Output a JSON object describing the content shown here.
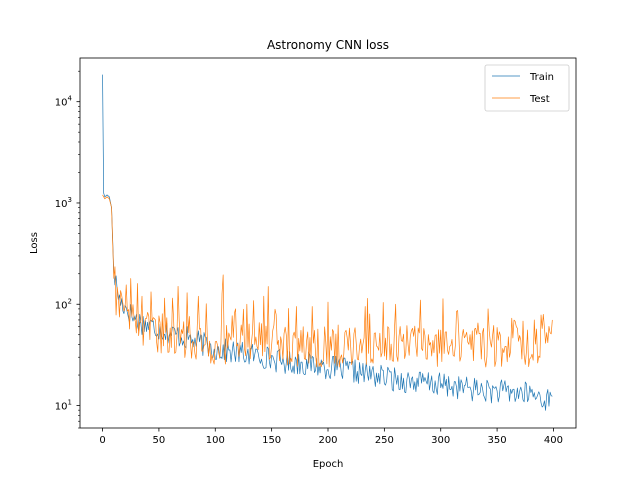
{
  "chart_data": {
    "type": "line",
    "title": "Astronomy CNN loss",
    "xlabel": "Epoch",
    "ylabel": "Loss",
    "xlim": [
      -20,
      420
    ],
    "ylim": [
      6,
      27000
    ],
    "yscale": "log",
    "grid": false,
    "legend_position": "top-right",
    "x_ticks": [
      0,
      50,
      100,
      150,
      200,
      250,
      300,
      350,
      400
    ],
    "x_tick_labels": [
      "0",
      "50",
      "100",
      "150",
      "200",
      "250",
      "300",
      "350",
      "400"
    ],
    "y_ticks": [
      10,
      100,
      1000,
      10000
    ],
    "y_tick_labels": [
      {
        "base": "10",
        "exp": "1"
      },
      {
        "base": "10",
        "exp": "2"
      },
      {
        "base": "10",
        "exp": "3"
      },
      {
        "base": "10",
        "exp": "4"
      }
    ],
    "series": [
      {
        "name": "Train",
        "color": "#1f77b4",
        "keypoints": [
          [
            0,
            18500
          ],
          [
            1,
            1250
          ],
          [
            2,
            1150
          ],
          [
            4,
            1200
          ],
          [
            6,
            1150
          ],
          [
            8,
            900
          ],
          [
            10,
            200
          ],
          [
            12,
            160
          ],
          [
            15,
            110
          ],
          [
            20,
            95
          ],
          [
            25,
            80
          ],
          [
            30,
            70
          ],
          [
            40,
            62
          ],
          [
            50,
            58
          ],
          [
            60,
            52
          ],
          [
            70,
            48
          ],
          [
            80,
            44
          ],
          [
            90,
            40
          ],
          [
            100,
            36
          ],
          [
            120,
            33
          ],
          [
            140,
            31
          ],
          [
            160,
            27
          ],
          [
            180,
            26
          ],
          [
            200,
            24
          ],
          [
            220,
            22
          ],
          [
            240,
            20
          ],
          [
            260,
            18
          ],
          [
            280,
            17
          ],
          [
            300,
            16
          ],
          [
            320,
            15
          ],
          [
            340,
            14
          ],
          [
            360,
            13.5
          ],
          [
            380,
            13
          ],
          [
            399,
            11
          ]
        ],
        "noise": 0.12
      },
      {
        "name": "Test",
        "color": "#ff7f0e",
        "keypoints": [
          [
            0,
            1200
          ],
          [
            2,
            1100
          ],
          [
            4,
            1150
          ],
          [
            6,
            1100
          ],
          [
            8,
            900
          ],
          [
            10,
            180
          ],
          [
            12,
            120
          ],
          [
            15,
            85
          ],
          [
            20,
            75
          ],
          [
            25,
            65
          ],
          [
            30,
            60
          ],
          [
            40,
            55
          ],
          [
            50,
            52
          ],
          [
            60,
            50
          ],
          [
            70,
            48
          ],
          [
            80,
            45
          ],
          [
            90,
            42
          ],
          [
            100,
            40
          ],
          [
            120,
            40
          ],
          [
            140,
            42
          ],
          [
            160,
            40
          ],
          [
            180,
            38
          ],
          [
            200,
            38
          ],
          [
            220,
            38
          ],
          [
            240,
            38
          ],
          [
            260,
            40
          ],
          [
            280,
            40
          ],
          [
            300,
            38
          ],
          [
            320,
            38
          ],
          [
            340,
            38
          ],
          [
            360,
            38
          ],
          [
            380,
            38
          ],
          [
            399,
            45
          ]
        ],
        "noise": 0.2,
        "spikes": [
          [
            35,
            120
          ],
          [
            55,
            115
          ],
          [
            62,
            115
          ],
          [
            75,
            130
          ],
          [
            85,
            120
          ],
          [
            107,
            195
          ],
          [
            118,
            90
          ],
          [
            128,
            100
          ],
          [
            143,
            120
          ],
          [
            147,
            150
          ],
          [
            172,
            95
          ],
          [
            200,
            105
          ],
          [
            233,
            95
          ],
          [
            260,
            100
          ],
          [
            282,
            110
          ],
          [
            314,
            85
          ],
          [
            342,
            90
          ],
          [
            366,
            68
          ],
          [
            383,
            70
          ],
          [
            399,
            70
          ]
        ]
      }
    ]
  }
}
